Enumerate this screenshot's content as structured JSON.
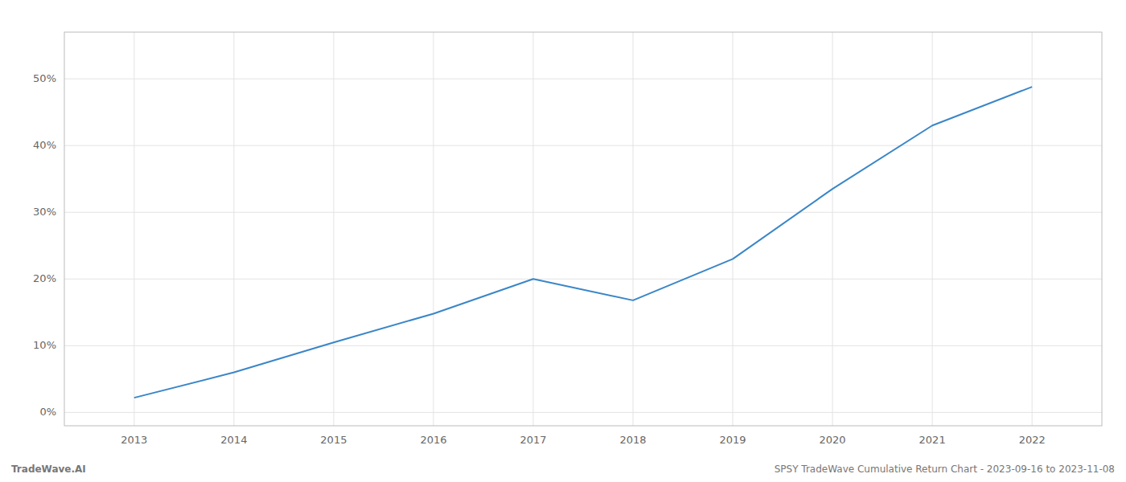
{
  "chart_data": {
    "type": "line",
    "x": [
      2013,
      2014,
      2015,
      2016,
      2017,
      2018,
      2019,
      2020,
      2021,
      2022
    ],
    "values": [
      0.022,
      0.06,
      0.105,
      0.148,
      0.2,
      0.168,
      0.23,
      0.335,
      0.43,
      0.488
    ],
    "color": "#3a86c8",
    "xlim": [
      2012.3,
      2022.7
    ],
    "xticks": [
      2013,
      2014,
      2015,
      2016,
      2017,
      2018,
      2019,
      2020,
      2021,
      2022
    ],
    "ylim": [
      -0.02,
      0.57
    ],
    "yticks": [
      {
        "value": 0,
        "label": "0%"
      },
      {
        "value": 0.1,
        "label": "10%"
      },
      {
        "value": 0.2,
        "label": "20%"
      },
      {
        "value": 0.3,
        "label": "30%"
      },
      {
        "value": 0.4,
        "label": "40%"
      },
      {
        "value": 0.5,
        "label": "50%"
      }
    ],
    "grid": true,
    "annotations": [
      "TradeWave.AI",
      "SPSY TradeWave Cumulative Return Chart - 2023-09-16 to 2023-11-08"
    ]
  }
}
